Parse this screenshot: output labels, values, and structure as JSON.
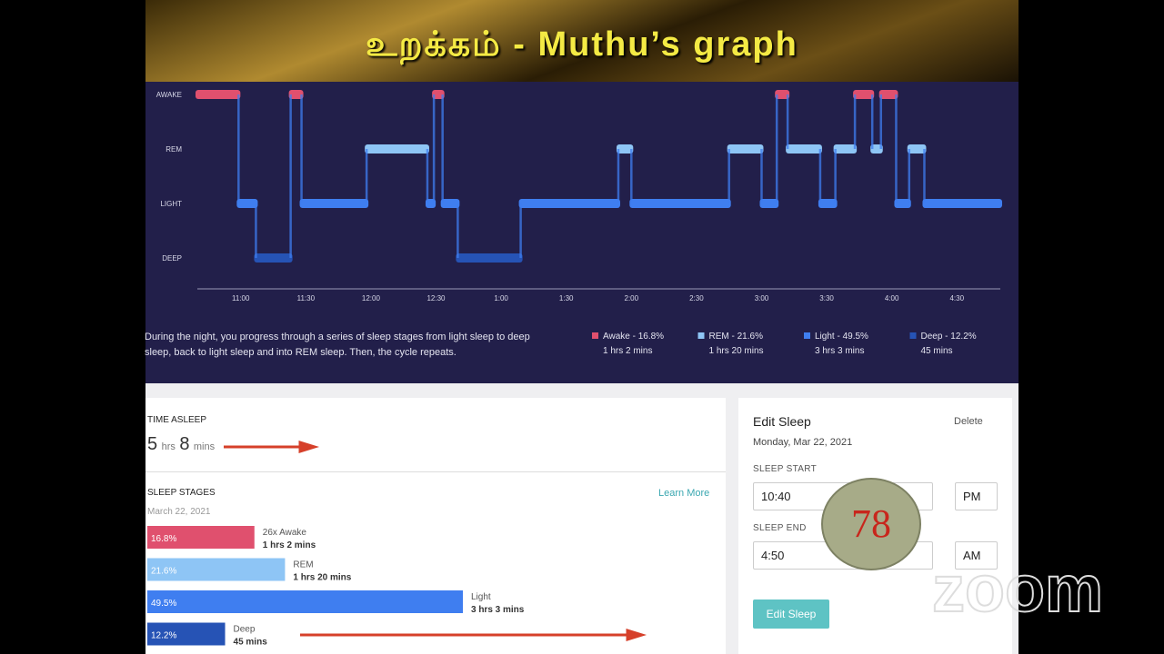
{
  "slide_title": "உறக்கம் - Muthu’s graph",
  "chart_data": [
    {
      "type": "hypnogram",
      "y_categories": [
        "AWAKE",
        "REM",
        "LIGHT",
        "DEEP"
      ],
      "stage_colors": {
        "AWAKE": "#e0506e",
        "REM": "#8ec5f5",
        "LIGHT": "#3f7ef0",
        "DEEP": "#2653b5"
      },
      "xlim": [
        "10:40",
        "4:50"
      ],
      "xticks": [
        "11:00",
        "11:30",
        "12:00",
        "12:30",
        "1:00",
        "1:30",
        "2:00",
        "2:30",
        "3:00",
        "3:30",
        "4:00",
        "4:30"
      ],
      "segments": [
        {
          "start": "10:40",
          "stage": "AWAKE"
        },
        {
          "start": "10:59",
          "stage": "LIGHT"
        },
        {
          "start": "11:07",
          "stage": "DEEP"
        },
        {
          "start": "11:23",
          "stage": "AWAKE"
        },
        {
          "start": "11:28",
          "stage": "LIGHT"
        },
        {
          "start": "11:58",
          "stage": "REM"
        },
        {
          "start": "12:26",
          "stage": "LIGHT"
        },
        {
          "start": "12:29",
          "stage": "AWAKE"
        },
        {
          "start": "12:33",
          "stage": "LIGHT"
        },
        {
          "start": "12:40",
          "stage": "DEEP"
        },
        {
          "start": "1:09",
          "stage": "LIGHT"
        },
        {
          "start": "1:54",
          "stage": "REM"
        },
        {
          "start": "2:00",
          "stage": "LIGHT"
        },
        {
          "start": "2:45",
          "stage": "REM"
        },
        {
          "start": "3:00",
          "stage": "LIGHT"
        },
        {
          "start": "3:07",
          "stage": "AWAKE"
        },
        {
          "start": "3:12",
          "stage": "REM"
        },
        {
          "start": "3:27",
          "stage": "LIGHT"
        },
        {
          "start": "3:34",
          "stage": "REM"
        },
        {
          "start": "3:43",
          "stage": "AWAKE"
        },
        {
          "start": "3:51",
          "stage": "REM"
        },
        {
          "start": "3:55",
          "stage": "AWAKE"
        },
        {
          "start": "4:02",
          "stage": "LIGHT"
        },
        {
          "start": "4:08",
          "stage": "REM"
        },
        {
          "start": "4:15",
          "stage": "LIGHT"
        }
      ],
      "description": "During the night, you progress through a series of sleep stages from light sleep to deep sleep, back to light sleep and into REM sleep. Then, the cycle repeats.",
      "legend": [
        {
          "name": "Awake - 16.8%",
          "duration": "1 hrs 2 mins",
          "color": "#e0506e"
        },
        {
          "name": "REM - 21.6%",
          "duration": "1 hrs 20 mins",
          "color": "#8ec5f5"
        },
        {
          "name": "Light - 49.5%",
          "duration": "3 hrs 3 mins",
          "color": "#3f7ef0"
        },
        {
          "name": "Deep - 12.2%",
          "duration": "45 mins",
          "color": "#2653b5"
        }
      ]
    },
    {
      "type": "bar",
      "title": "SLEEP STAGES",
      "subtitle": "March 22, 2021",
      "link": "Learn More",
      "categories": [
        "26x Awake",
        "REM",
        "Light",
        "Deep"
      ],
      "durations": [
        "1 hrs 2 mins",
        "1 hrs 20 mins",
        "3 hrs 3 mins",
        "45 mins"
      ],
      "values": [
        16.8,
        21.6,
        49.5,
        12.2
      ],
      "value_labels": [
        "16.8%",
        "21.6%",
        "49.5%",
        "12.2%"
      ],
      "colors": [
        "#e0506e",
        "#8ec5f5",
        "#3f7ef0",
        "#2653b5"
      ]
    }
  ],
  "time_asleep": {
    "label": "TIME ASLEEP",
    "hours": "5",
    "hours_unit": "hrs",
    "minutes": "8",
    "minutes_unit": "mins"
  },
  "edit_sleep": {
    "title": "Edit Sleep",
    "delete": "Delete",
    "date": "Monday, Mar 22, 2021",
    "start_label": "SLEEP START",
    "start_time": "10:40",
    "start_period": "PM",
    "end_label": "SLEEP END",
    "end_time": "4:50",
    "end_period": "AM",
    "button": "Edit Sleep"
  },
  "badge": "78",
  "logo": "zoom"
}
